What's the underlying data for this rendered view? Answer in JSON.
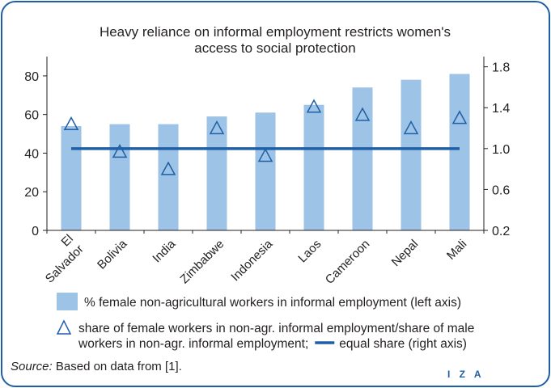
{
  "chart_data": {
    "type": "bar",
    "title": "Heavy reliance on informal employment restricts women's access to social protection",
    "title_lines": [
      "Heavy reliance on informal employment restricts women's",
      "access to social protection"
    ],
    "categories": [
      "El Salvador",
      "Bolivia",
      "India",
      "Zimbabwe",
      "Indonesia",
      "Laos",
      "Cameroon",
      "Nepal",
      "Mali"
    ],
    "category_label_lines": [
      [
        "El",
        "Salvador"
      ],
      [
        "Bolivia"
      ],
      [
        "India"
      ],
      [
        "Zimbabwe"
      ],
      [
        "Indonesia"
      ],
      [
        "Laos"
      ],
      [
        "Cameroon"
      ],
      [
        "Nepal"
      ],
      [
        "Mali"
      ]
    ],
    "series": [
      {
        "name": "% female non-agricultural workers in informal employment (left axis)",
        "kind": "bar",
        "axis": "left",
        "color": "#9dc3e6",
        "values": [
          54,
          55,
          55,
          59,
          61,
          65,
          74,
          78,
          81
        ]
      },
      {
        "name": "share of female workers in non-agr. informal employment/share of male workers in non-agr. informal employment;",
        "kind": "marker",
        "marker": "triangle",
        "axis": "right",
        "color": "#1f5fa6",
        "values": [
          1.24,
          0.97,
          0.8,
          1.2,
          0.93,
          1.41,
          1.33,
          1.2,
          1.3
        ]
      },
      {
        "name": "equal share (right axis)",
        "kind": "line",
        "axis": "right",
        "color": "#1f5fa6",
        "values": [
          1.0,
          1.0,
          1.0,
          1.0,
          1.0,
          1.0,
          1.0,
          1.0,
          1.0
        ]
      }
    ],
    "left_axis": {
      "ylim": [
        0,
        90
      ],
      "ticks": [
        0,
        20,
        40,
        60,
        80
      ],
      "tick_labels": [
        "0",
        "20",
        "40",
        "60",
        "80"
      ]
    },
    "right_axis": {
      "ylim": [
        0.2,
        1.9
      ],
      "ticks": [
        0.2,
        0.6,
        1.0,
        1.4,
        1.8
      ],
      "tick_labels": [
        "0.2",
        "0.6",
        "1.0",
        "1.4",
        "1.8"
      ]
    },
    "grid": false,
    "legend_placement": "bottom",
    "legend": [
      {
        "symbol": "bar",
        "lines": [
          "% female non-agricultural workers in informal employment (left axis)"
        ]
      },
      {
        "symbol": "triangle",
        "lines": [
          "share of female workers in non-agr. informal employment/share of male",
          "workers in non-agr. informal employment;"
        ],
        "extra_symbol": "line",
        "extra_text": "equal share (right axis)"
      }
    ]
  },
  "source": {
    "label": "Source:",
    "text": "Based on data from [1]."
  },
  "logo": "I Z A"
}
